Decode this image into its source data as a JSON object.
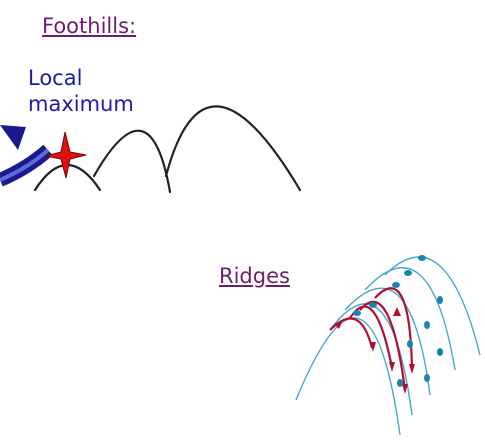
{
  "foothills": {
    "title": "Foothills:",
    "local_max_line1": "Local",
    "local_max_line2": "maximum",
    "colors": {
      "curve": "#222222",
      "arrow": "#1a1a8c",
      "star": "#e01010",
      "text": "#1c1ca6"
    }
  },
  "ridges": {
    "title": "Ridges",
    "colors": {
      "cyan_curve": "#4aa8c8",
      "red_curve": "#b01030",
      "marker": "#1a86b0"
    }
  },
  "title_color": "#6a1f6f"
}
